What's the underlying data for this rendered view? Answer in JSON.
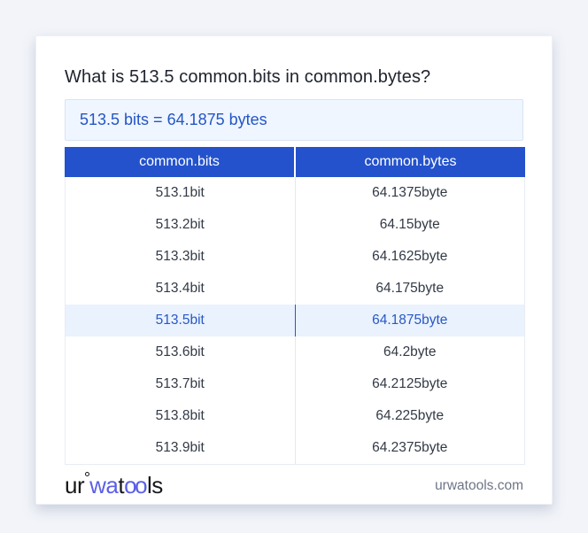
{
  "title": "What is 513.5 common.bits in common.bytes?",
  "result": {
    "text": "513.5 bits = 64.1875 bytes"
  },
  "table": {
    "headers": [
      "common.bits",
      "common.bytes"
    ],
    "highlight_index": 4,
    "rows": [
      [
        "513.1bit",
        "64.1375byte"
      ],
      [
        "513.2bit",
        "64.15byte"
      ],
      [
        "513.3bit",
        "64.1625byte"
      ],
      [
        "513.4bit",
        "64.175byte"
      ],
      [
        "513.5bit",
        "64.1875byte"
      ],
      [
        "513.6bit",
        "64.2byte"
      ],
      [
        "513.7bit",
        "64.2125byte"
      ],
      [
        "513.8bit",
        "64.225byte"
      ],
      [
        "513.9bit",
        "64.2375byte"
      ]
    ]
  },
  "footer": {
    "logo": {
      "part1": "ur",
      "part2": "wa",
      "part3": "t",
      "part4": "oo",
      "part5": "ls"
    },
    "site": "urwatools.com"
  },
  "colors": {
    "page_background": "#f2f4f9",
    "card_background": "#ffffff",
    "header_blue": "#2452cc",
    "result_box_background": "#eff6ff",
    "result_box_border": "#d8e4f4",
    "result_text_blue": "#2355c6",
    "highlight_row_background": "#e9f2fd",
    "highlight_row_text": "#2a57c4",
    "row_text": "#333a46",
    "logo_accent": "#5b5fe8",
    "footer_link_gray": "#6d7585"
  }
}
